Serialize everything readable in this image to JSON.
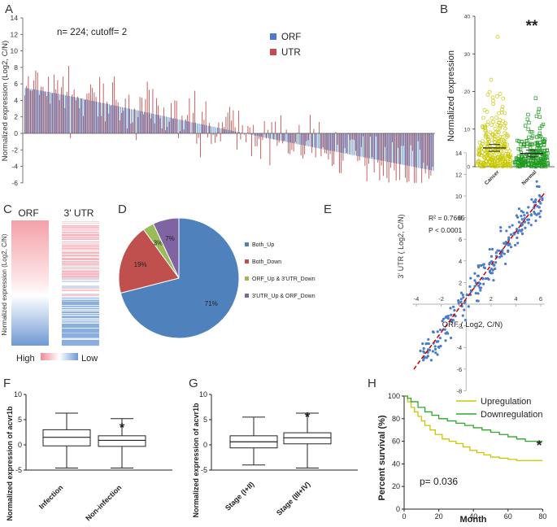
{
  "panel_labels": {
    "A": "A",
    "B": "B",
    "C": "C",
    "D": "D",
    "E": "E",
    "F": "F",
    "G": "G",
    "H": "H"
  },
  "colors": {
    "orf": "#4a7cc9",
    "utr": "#c0504d",
    "cancer": "#c8c800",
    "normal": "#1f9a1f",
    "pie_both_up": "#4f81bd",
    "pie_both_down": "#c0504d",
    "pie_orf_up": "#9bbb59",
    "pie_utr_up": "#8064a2",
    "up": "#c8c800",
    "down": "#2ca82c",
    "trend": "#cc0000"
  },
  "chart_data": [
    {
      "id": "A",
      "type": "bar",
      "title": "n= 224; cutoff= 2",
      "ylabel": "Normalized expression (Log2, C/N)",
      "ylim": [
        -6,
        14
      ],
      "yticks": [
        "14",
        "12",
        "10",
        "8",
        "6",
        "4",
        "2",
        "0",
        "-2",
        "-4",
        "-6"
      ],
      "legend": [
        "ORF",
        "UTR"
      ],
      "n_samples": 224,
      "series": [
        {
          "name": "ORF",
          "description": "sorted descending",
          "start": 5.5,
          "end": -4.5
        },
        {
          "name": "UTR",
          "description": "noisy around ORF",
          "max": 12.2,
          "min": -6.0
        }
      ]
    },
    {
      "id": "B",
      "type": "scatter",
      "ylabel": "Normalized expression",
      "ylim": [
        0,
        40
      ],
      "yticks": [
        "40",
        "30",
        "20",
        "10",
        "0"
      ],
      "categories": [
        "Cancer",
        "Normal"
      ],
      "means": [
        5.0,
        3.5
      ],
      "significance": "**"
    },
    {
      "id": "C",
      "type": "heatmap",
      "columns": [
        "ORF",
        "3' UTR"
      ],
      "ylabel": "Normalized expression (Log2, C/N)",
      "legend": {
        "high": "High",
        "low": "Low"
      }
    },
    {
      "id": "D",
      "type": "pie",
      "slices": [
        {
          "name": "Both_Up",
          "value": 71,
          "label": "71%"
        },
        {
          "name": "Both_Down",
          "value": 19,
          "label": "19%"
        },
        {
          "name": "ORF_Up & 3'UTR_Down",
          "value": 3,
          "label": "3%"
        },
        {
          "name": "3'UTR_Up & ORF_Down",
          "value": 7,
          "label": "7%"
        }
      ]
    },
    {
      "id": "E",
      "type": "scatter",
      "xlabel": "ORF ( Log2, C/N)",
      "ylabel": "3' UTR ( Log2, C/N)",
      "xlim": [
        -4,
        6
      ],
      "ylim": [
        -8,
        14
      ],
      "xticks": [
        "-4",
        "-2",
        "0",
        "2",
        "4",
        "6"
      ],
      "yticks": [
        "14",
        "12",
        "10",
        "8",
        "6",
        "4",
        "2",
        "0",
        "-2",
        "-4",
        "-6",
        "-8"
      ],
      "r2": "R² = 0.7665",
      "p": "P < 0.0001",
      "trend": {
        "slope": 1.55,
        "intercept": 0.5
      }
    },
    {
      "id": "F",
      "type": "boxplot",
      "ylabel": "Normalized expression of acvr1b",
      "ylim": [
        -5,
        10
      ],
      "yticks": [
        "10",
        "5",
        "0",
        "-5"
      ],
      "categories": [
        "Infection",
        "Non-infection"
      ],
      "boxes": [
        {
          "min": -4.6,
          "q1": -0.2,
          "median": 1.5,
          "q3": 3.0,
          "max": 6.3
        },
        {
          "min": -4.6,
          "q1": -0.3,
          "median": 0.9,
          "q3": 1.8,
          "max": 5.2
        }
      ],
      "significance": "*"
    },
    {
      "id": "G",
      "type": "boxplot",
      "ylabel": "Normalized expression of acvr1b",
      "ylim": [
        -5,
        10
      ],
      "yticks": [
        "10",
        "5",
        "0",
        "-5"
      ],
      "categories": [
        "Stage (I+II)",
        "Stage (III+IV)"
      ],
      "boxes": [
        {
          "min": -4.0,
          "q1": -0.6,
          "median": 0.6,
          "q3": 1.8,
          "max": 5.5
        },
        {
          "min": -4.6,
          "q1": 0.2,
          "median": 1.4,
          "q3": 2.4,
          "max": 6.3
        }
      ],
      "significance": "*"
    },
    {
      "id": "H",
      "type": "line",
      "xlabel": "Month",
      "ylabel": "Percent survival (%)",
      "xlim": [
        0,
        80
      ],
      "ylim": [
        0,
        100
      ],
      "xticks": [
        "0",
        "20",
        "40",
        "60",
        "80"
      ],
      "yticks": [
        "100",
        "80",
        "60",
        "40",
        "20",
        "0"
      ],
      "series": [
        {
          "name": "Upregulation",
          "x": [
            0,
            2,
            4,
            6,
            8,
            10,
            12,
            15,
            18,
            22,
            26,
            30,
            34,
            38,
            42,
            46,
            50,
            55,
            60,
            65,
            70,
            75,
            80
          ],
          "y": [
            100,
            95,
            90,
            86,
            82,
            78,
            74,
            70,
            66,
            62,
            60,
            58,
            55,
            52,
            50,
            48,
            46,
            45,
            44,
            43,
            43,
            43,
            43
          ]
        },
        {
          "name": "Downregulation",
          "x": [
            0,
            2,
            4,
            8,
            12,
            16,
            20,
            25,
            30,
            35,
            40,
            45,
            50,
            55,
            60,
            65,
            70,
            75,
            80
          ],
          "y": [
            100,
            98,
            95,
            90,
            86,
            83,
            80,
            78,
            76,
            74,
            72,
            70,
            68,
            66,
            64,
            62,
            60,
            60,
            60
          ]
        }
      ],
      "pvalue": "p= 0.036",
      "significance": "*"
    }
  ]
}
